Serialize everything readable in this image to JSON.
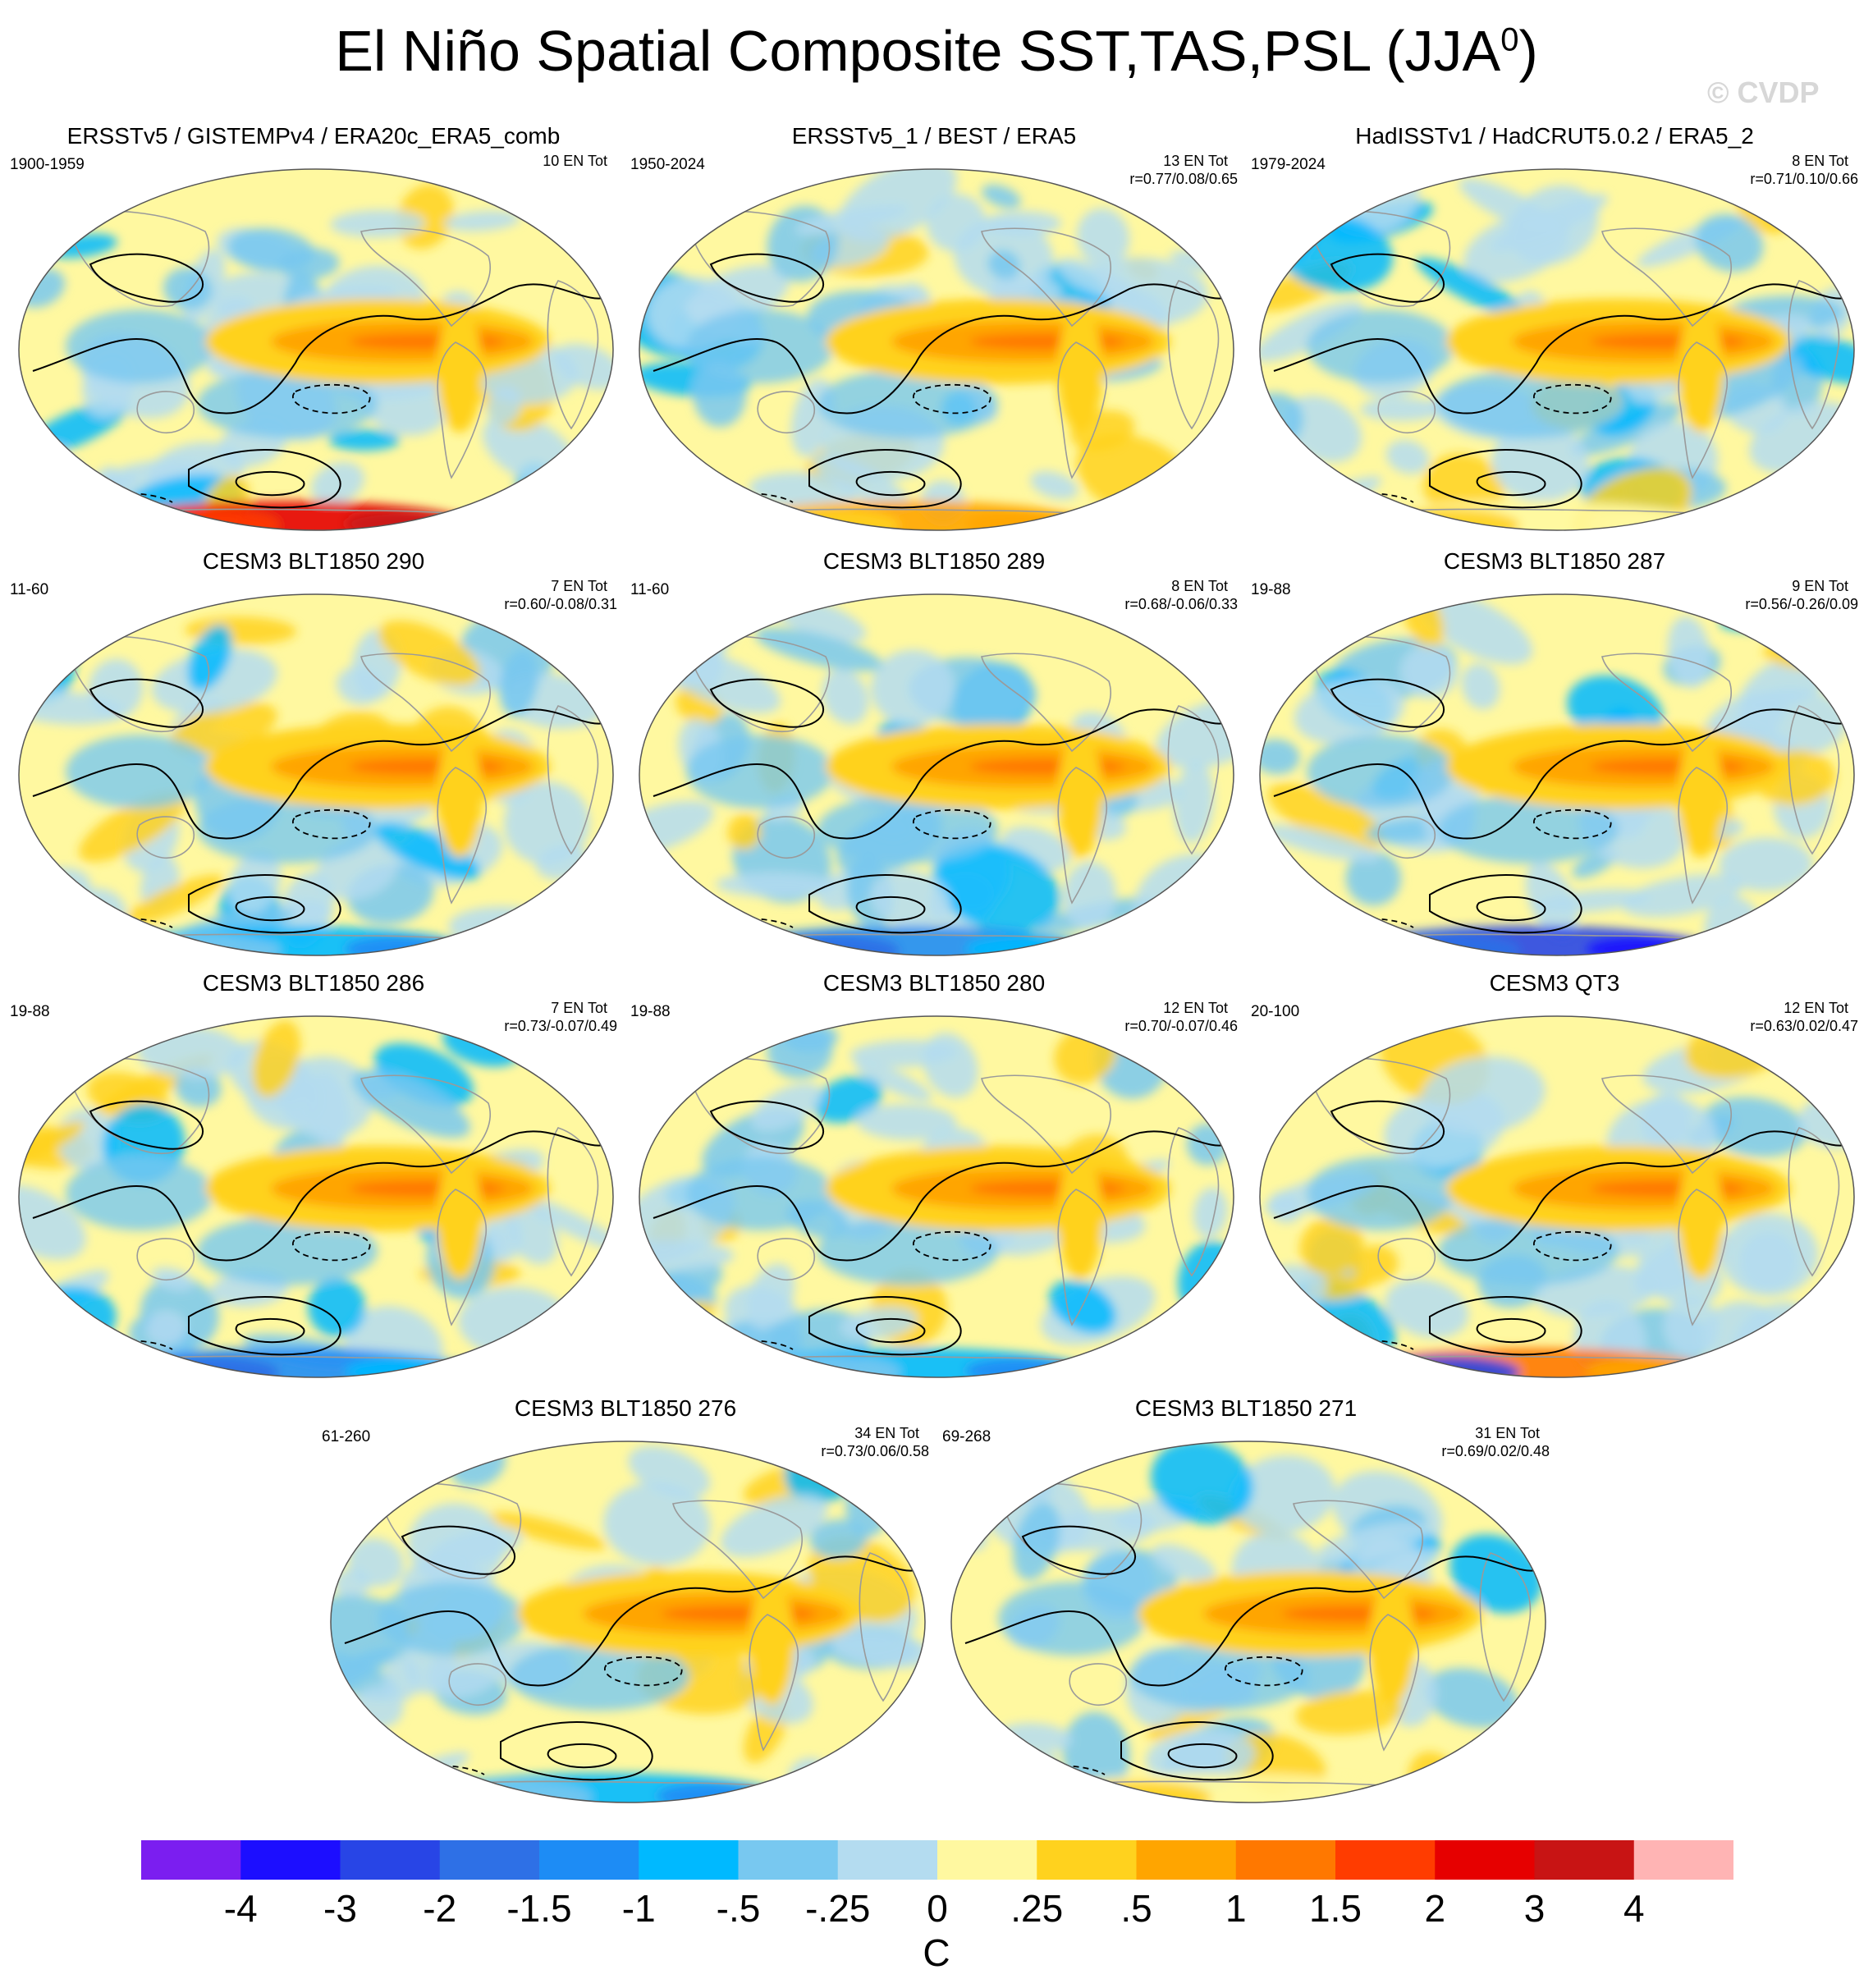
{
  "title": "El Niño Spatial Composite SST,TAS,PSL (JJA",
  "title_superscript": "0",
  "title_close": ")",
  "copyright": "© CVDP",
  "colors": {
    "levels": [
      "#7b1ef0",
      "#1c0eff",
      "#2845e6",
      "#2e70e6",
      "#1d8cf5",
      "#00b9ff",
      "#78c8f0",
      "#b4dcf0",
      "#fff8a0",
      "#ffd21e",
      "#ffa500",
      "#ff7800",
      "#ff3c00",
      "#e60000",
      "#c81414",
      "#ffb4b4"
    ],
    "ocean_base": "#fff8a0",
    "land_coast": "#9a9a9a",
    "contour": "#000000"
  },
  "chart_data": [
    {
      "type": "heatmap",
      "title": "ERSSTv5 / GISTEMPv4 / ERA20c_ERA5_comb",
      "years": "1900-1959",
      "count": "10 EN Tot",
      "corr": "",
      "southern": "red"
    },
    {
      "type": "heatmap",
      "title": "ERSSTv5_1 / BEST / ERA5",
      "years": "1950-2024",
      "count": "13 EN Tot",
      "corr": "r=0.77/0.08/0.65",
      "southern": "orange"
    },
    {
      "type": "heatmap",
      "title": "HadISSTv1 / HadCRUT5.0.2 / ERA5_2",
      "years": "1979-2024",
      "count": "8 EN Tot",
      "corr": "r=0.71/0.10/0.66",
      "southern": "yellow"
    },
    {
      "type": "heatmap",
      "title": "CESM3 BLT1850 290",
      "years": "11-60",
      "count": "7 EN Tot",
      "corr": "r=0.60/-0.08/0.31",
      "southern": "blue-light"
    },
    {
      "type": "heatmap",
      "title": "CESM3 BLT1850 289",
      "years": "11-60",
      "count": "8 EN Tot",
      "corr": "r=0.68/-0.06/0.33",
      "southern": "blue"
    },
    {
      "type": "heatmap",
      "title": "CESM3 BLT1850 287",
      "years": "19-88",
      "count": "9 EN Tot",
      "corr": "r=0.56/-0.26/0.09",
      "southern": "deepblue"
    },
    {
      "type": "heatmap",
      "title": "CESM3 BLT1850 286",
      "years": "19-88",
      "count": "7 EN Tot",
      "corr": "r=0.73/-0.07/0.49",
      "southern": "blue"
    },
    {
      "type": "heatmap",
      "title": "CESM3 BLT1850 280",
      "years": "19-88",
      "count": "12 EN Tot",
      "corr": "r=0.70/-0.07/0.46",
      "southern": "blue-light"
    },
    {
      "type": "heatmap",
      "title": "CESM3 QT3",
      "years": "20-100",
      "count": "12 EN Tot",
      "corr": "r=0.63/0.02/0.47",
      "southern": "mixed"
    },
    {
      "type": "heatmap",
      "title": "CESM3 BLT1850 276",
      "years": "61-260",
      "count": "34 EN Tot",
      "corr": "r=0.73/0.06/0.58",
      "southern": "blue-light"
    },
    {
      "type": "heatmap",
      "title": "CESM3 BLT1850 271",
      "years": "69-268",
      "count": "31 EN Tot",
      "corr": "r=0.69/0.02/0.48",
      "southern": "yellow"
    }
  ],
  "colorbar": {
    "labels": [
      "-4",
      "-3",
      "-2",
      "-1.5",
      "-1",
      "-.5",
      "-.25",
      "0",
      ".25",
      ".5",
      "1",
      "1.5",
      "2",
      "3",
      "4"
    ],
    "unit": "C"
  }
}
